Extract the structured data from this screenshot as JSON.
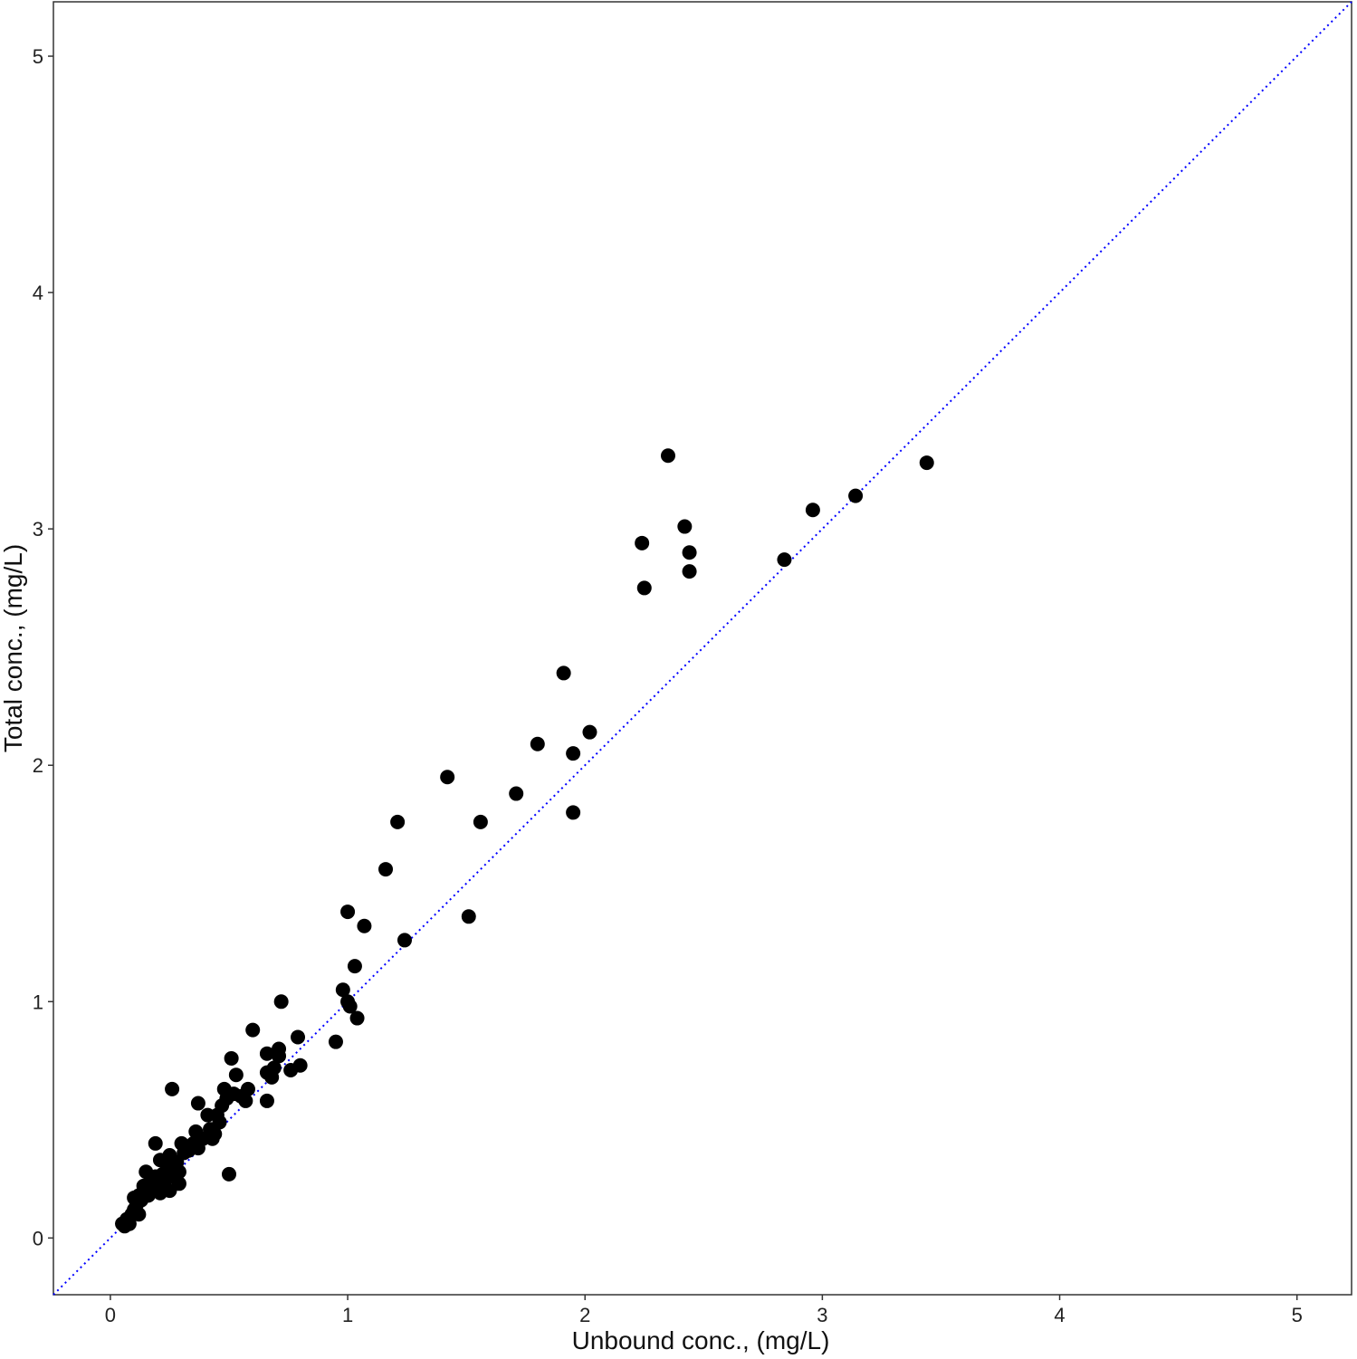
{
  "chart_data": {
    "type": "scatter",
    "title": "",
    "xlabel": "Unbound conc., (mg/L)",
    "ylabel": "Total conc., (mg/L)",
    "xlim": [
      -0.24,
      5.23
    ],
    "ylim": [
      -0.24,
      5.23
    ],
    "x_ticks": [
      0,
      1,
      2,
      3,
      4,
      5
    ],
    "y_ticks": [
      0,
      1,
      2,
      3,
      4,
      5
    ],
    "x_tick_labels": [
      "0",
      "1",
      "2",
      "3",
      "4",
      "5"
    ],
    "y_tick_labels": [
      "0",
      "1",
      "2",
      "3",
      "4",
      "5"
    ],
    "grid": false,
    "reference_line": {
      "type": "identity",
      "style": "dotted",
      "color": "#0000ff"
    },
    "point_color": "#000000",
    "points": [
      [
        0.05,
        0.06
      ],
      [
        0.06,
        0.05
      ],
      [
        0.07,
        0.08
      ],
      [
        0.08,
        0.06
      ],
      [
        0.09,
        0.1
      ],
      [
        0.1,
        0.12
      ],
      [
        0.1,
        0.17
      ],
      [
        0.11,
        0.14
      ],
      [
        0.12,
        0.1
      ],
      [
        0.12,
        0.18
      ],
      [
        0.13,
        0.16
      ],
      [
        0.14,
        0.22
      ],
      [
        0.15,
        0.2
      ],
      [
        0.15,
        0.28
      ],
      [
        0.16,
        0.18
      ],
      [
        0.17,
        0.24
      ],
      [
        0.18,
        0.21
      ],
      [
        0.19,
        0.26
      ],
      [
        0.19,
        0.4
      ],
      [
        0.2,
        0.22
      ],
      [
        0.21,
        0.19
      ],
      [
        0.21,
        0.33
      ],
      [
        0.22,
        0.27
      ],
      [
        0.23,
        0.24
      ],
      [
        0.24,
        0.3
      ],
      [
        0.25,
        0.2
      ],
      [
        0.25,
        0.35
      ],
      [
        0.26,
        0.63
      ],
      [
        0.27,
        0.26
      ],
      [
        0.28,
        0.32
      ],
      [
        0.29,
        0.23
      ],
      [
        0.29,
        0.28
      ],
      [
        0.3,
        0.4
      ],
      [
        0.31,
        0.36
      ],
      [
        0.33,
        0.37
      ],
      [
        0.35,
        0.4
      ],
      [
        0.36,
        0.45
      ],
      [
        0.37,
        0.38
      ],
      [
        0.37,
        0.57
      ],
      [
        0.39,
        0.42
      ],
      [
        0.41,
        0.52
      ],
      [
        0.42,
        0.46
      ],
      [
        0.43,
        0.42
      ],
      [
        0.44,
        0.44
      ],
      [
        0.45,
        0.52
      ],
      [
        0.46,
        0.49
      ],
      [
        0.47,
        0.56
      ],
      [
        0.48,
        0.63
      ],
      [
        0.49,
        0.59
      ],
      [
        0.5,
        0.27
      ],
      [
        0.51,
        0.76
      ],
      [
        0.52,
        0.61
      ],
      [
        0.53,
        0.69
      ],
      [
        0.55,
        0.6
      ],
      [
        0.57,
        0.58
      ],
      [
        0.58,
        0.63
      ],
      [
        0.6,
        0.88
      ],
      [
        0.66,
        0.58
      ],
      [
        0.66,
        0.7
      ],
      [
        0.66,
        0.78
      ],
      [
        0.68,
        0.68
      ],
      [
        0.69,
        0.72
      ],
      [
        0.71,
        0.77
      ],
      [
        0.71,
        0.8
      ],
      [
        0.72,
        1.0
      ],
      [
        0.76,
        0.71
      ],
      [
        0.79,
        0.85
      ],
      [
        0.8,
        0.73
      ],
      [
        0.95,
        0.83
      ],
      [
        0.98,
        1.05
      ],
      [
        1.0,
        1.38
      ],
      [
        1.0,
        1.0
      ],
      [
        1.01,
        0.98
      ],
      [
        1.03,
        1.15
      ],
      [
        1.04,
        0.93
      ],
      [
        1.07,
        1.32
      ],
      [
        1.16,
        1.56
      ],
      [
        1.21,
        1.76
      ],
      [
        1.24,
        1.26
      ],
      [
        1.42,
        1.95
      ],
      [
        1.51,
        1.36
      ],
      [
        1.56,
        1.76
      ],
      [
        1.71,
        1.88
      ],
      [
        1.8,
        2.09
      ],
      [
        1.91,
        2.39
      ],
      [
        1.95,
        2.05
      ],
      [
        1.95,
        1.8
      ],
      [
        2.02,
        2.14
      ],
      [
        2.24,
        2.94
      ],
      [
        2.25,
        2.75
      ],
      [
        2.35,
        3.31
      ],
      [
        2.42,
        3.01
      ],
      [
        2.44,
        2.9
      ],
      [
        2.44,
        2.82
      ],
      [
        2.84,
        2.87
      ],
      [
        2.96,
        3.08
      ],
      [
        3.14,
        3.14
      ],
      [
        3.44,
        3.28
      ]
    ]
  }
}
